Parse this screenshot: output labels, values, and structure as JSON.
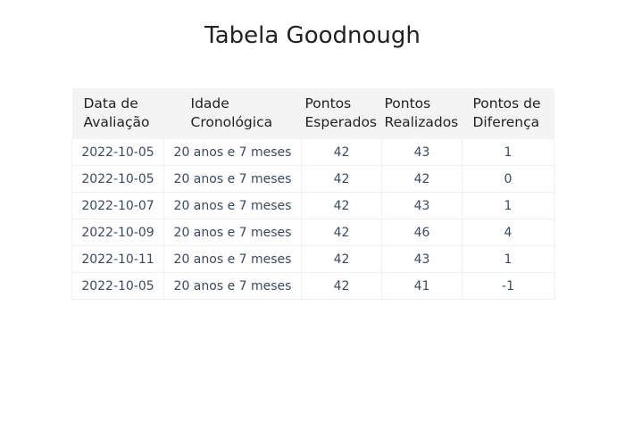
{
  "chart_data": {
    "type": "table",
    "title": "Tabela Goodnough",
    "columns": [
      "Data de Avaliação",
      "Idade Cronológica",
      "Pontos Esperados",
      "Pontos Realizados",
      "Pontos de Diferença"
    ],
    "header_lines": [
      [
        "Data de",
        "Avaliação"
      ],
      [
        "Idade",
        "Cronológica"
      ],
      [
        "Pontos",
        "Esperados"
      ],
      [
        "Pontos",
        "Realizados"
      ],
      [
        "Pontos de",
        "Diferença"
      ]
    ],
    "rows": [
      [
        "2022-10-05",
        "20 anos e 7 meses",
        "42",
        "43",
        "1"
      ],
      [
        "2022-10-05",
        "20 anos e 7 meses",
        "42",
        "42",
        "0"
      ],
      [
        "2022-10-07",
        "20 anos e 7 meses",
        "42",
        "43",
        "1"
      ],
      [
        "2022-10-09",
        "20 anos e 7 meses",
        "42",
        "46",
        "4"
      ],
      [
        "2022-10-11",
        "20 anos e 7 meses",
        "42",
        "43",
        "1"
      ],
      [
        "2022-10-05",
        "20 anos e 7 meses",
        "42",
        "41",
        "-1"
      ]
    ]
  },
  "colors": {
    "header_bg": "#f4f4f4",
    "cell_border": "#f0f0f0",
    "cell_text": "#3b4a5e"
  }
}
